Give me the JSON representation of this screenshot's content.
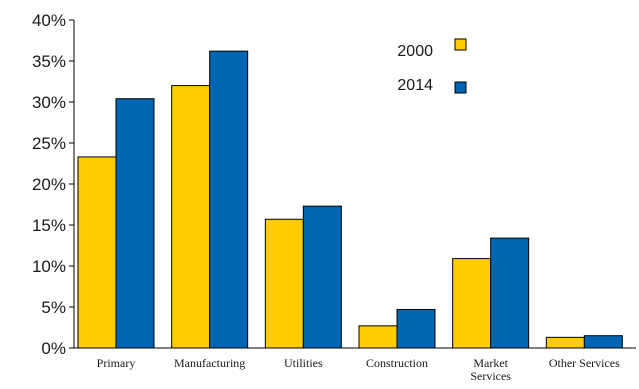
{
  "chart_data": {
    "type": "bar",
    "title": "",
    "xlabel": "",
    "ylabel": "",
    "categories": [
      [
        "Primary"
      ],
      [
        "Manufacturing"
      ],
      [
        "Utilities"
      ],
      [
        "Construction"
      ],
      [
        "Market",
        "Services"
      ],
      [
        "Other Services"
      ]
    ],
    "series": [
      {
        "name": "2000",
        "color": "#FFCC00",
        "values": [
          23.3,
          32.0,
          15.7,
          2.7,
          10.9,
          1.3
        ]
      },
      {
        "name": "2014",
        "color": "#0066B3",
        "values": [
          30.4,
          36.2,
          17.3,
          4.7,
          13.4,
          1.5
        ]
      }
    ],
    "ylim": [
      0,
      40
    ],
    "yticks": [
      0,
      5,
      10,
      15,
      20,
      25,
      30,
      35,
      40
    ],
    "ytick_labels": [
      "0%",
      "5%",
      "10%",
      "15%",
      "20%",
      "25%",
      "30%",
      "35%",
      "40%"
    ],
    "grid": false,
    "legend": "top-right"
  }
}
